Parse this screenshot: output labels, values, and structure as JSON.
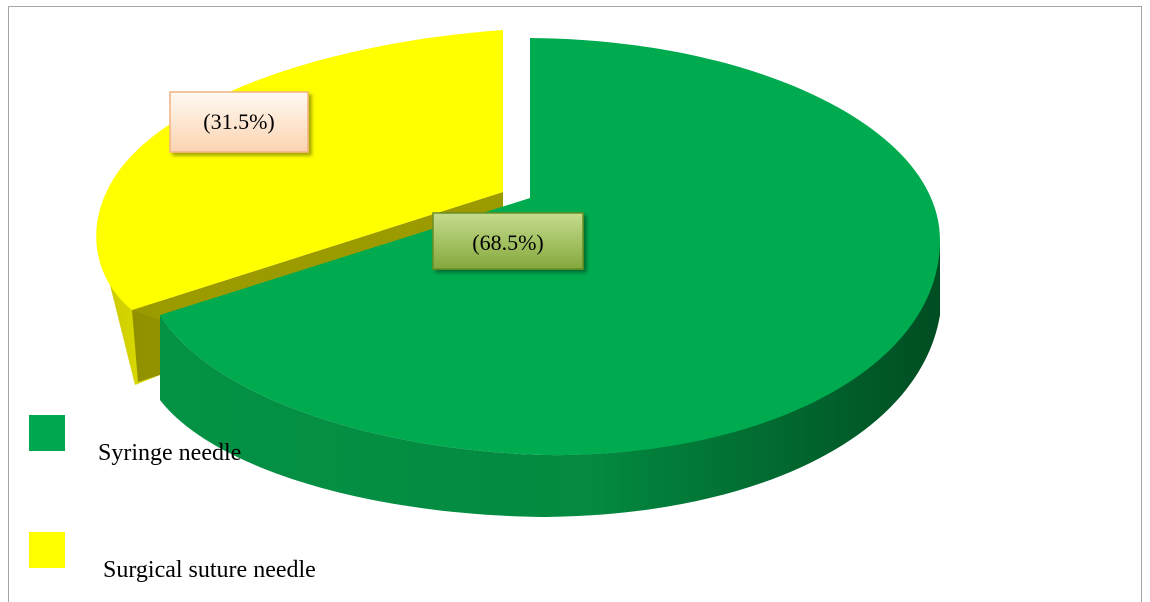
{
  "chart_data": {
    "type": "pie",
    "style": "3d-exploded",
    "categories": [
      "Syringe needle",
      "Surgical suture needle"
    ],
    "values": [
      68.5,
      31.5
    ],
    "data_labels": [
      "(68.5%)",
      "(31.5%)"
    ],
    "colors": [
      "#00a84f",
      "#ffff00"
    ],
    "legend_position": "bottom-left",
    "title": ""
  }
}
